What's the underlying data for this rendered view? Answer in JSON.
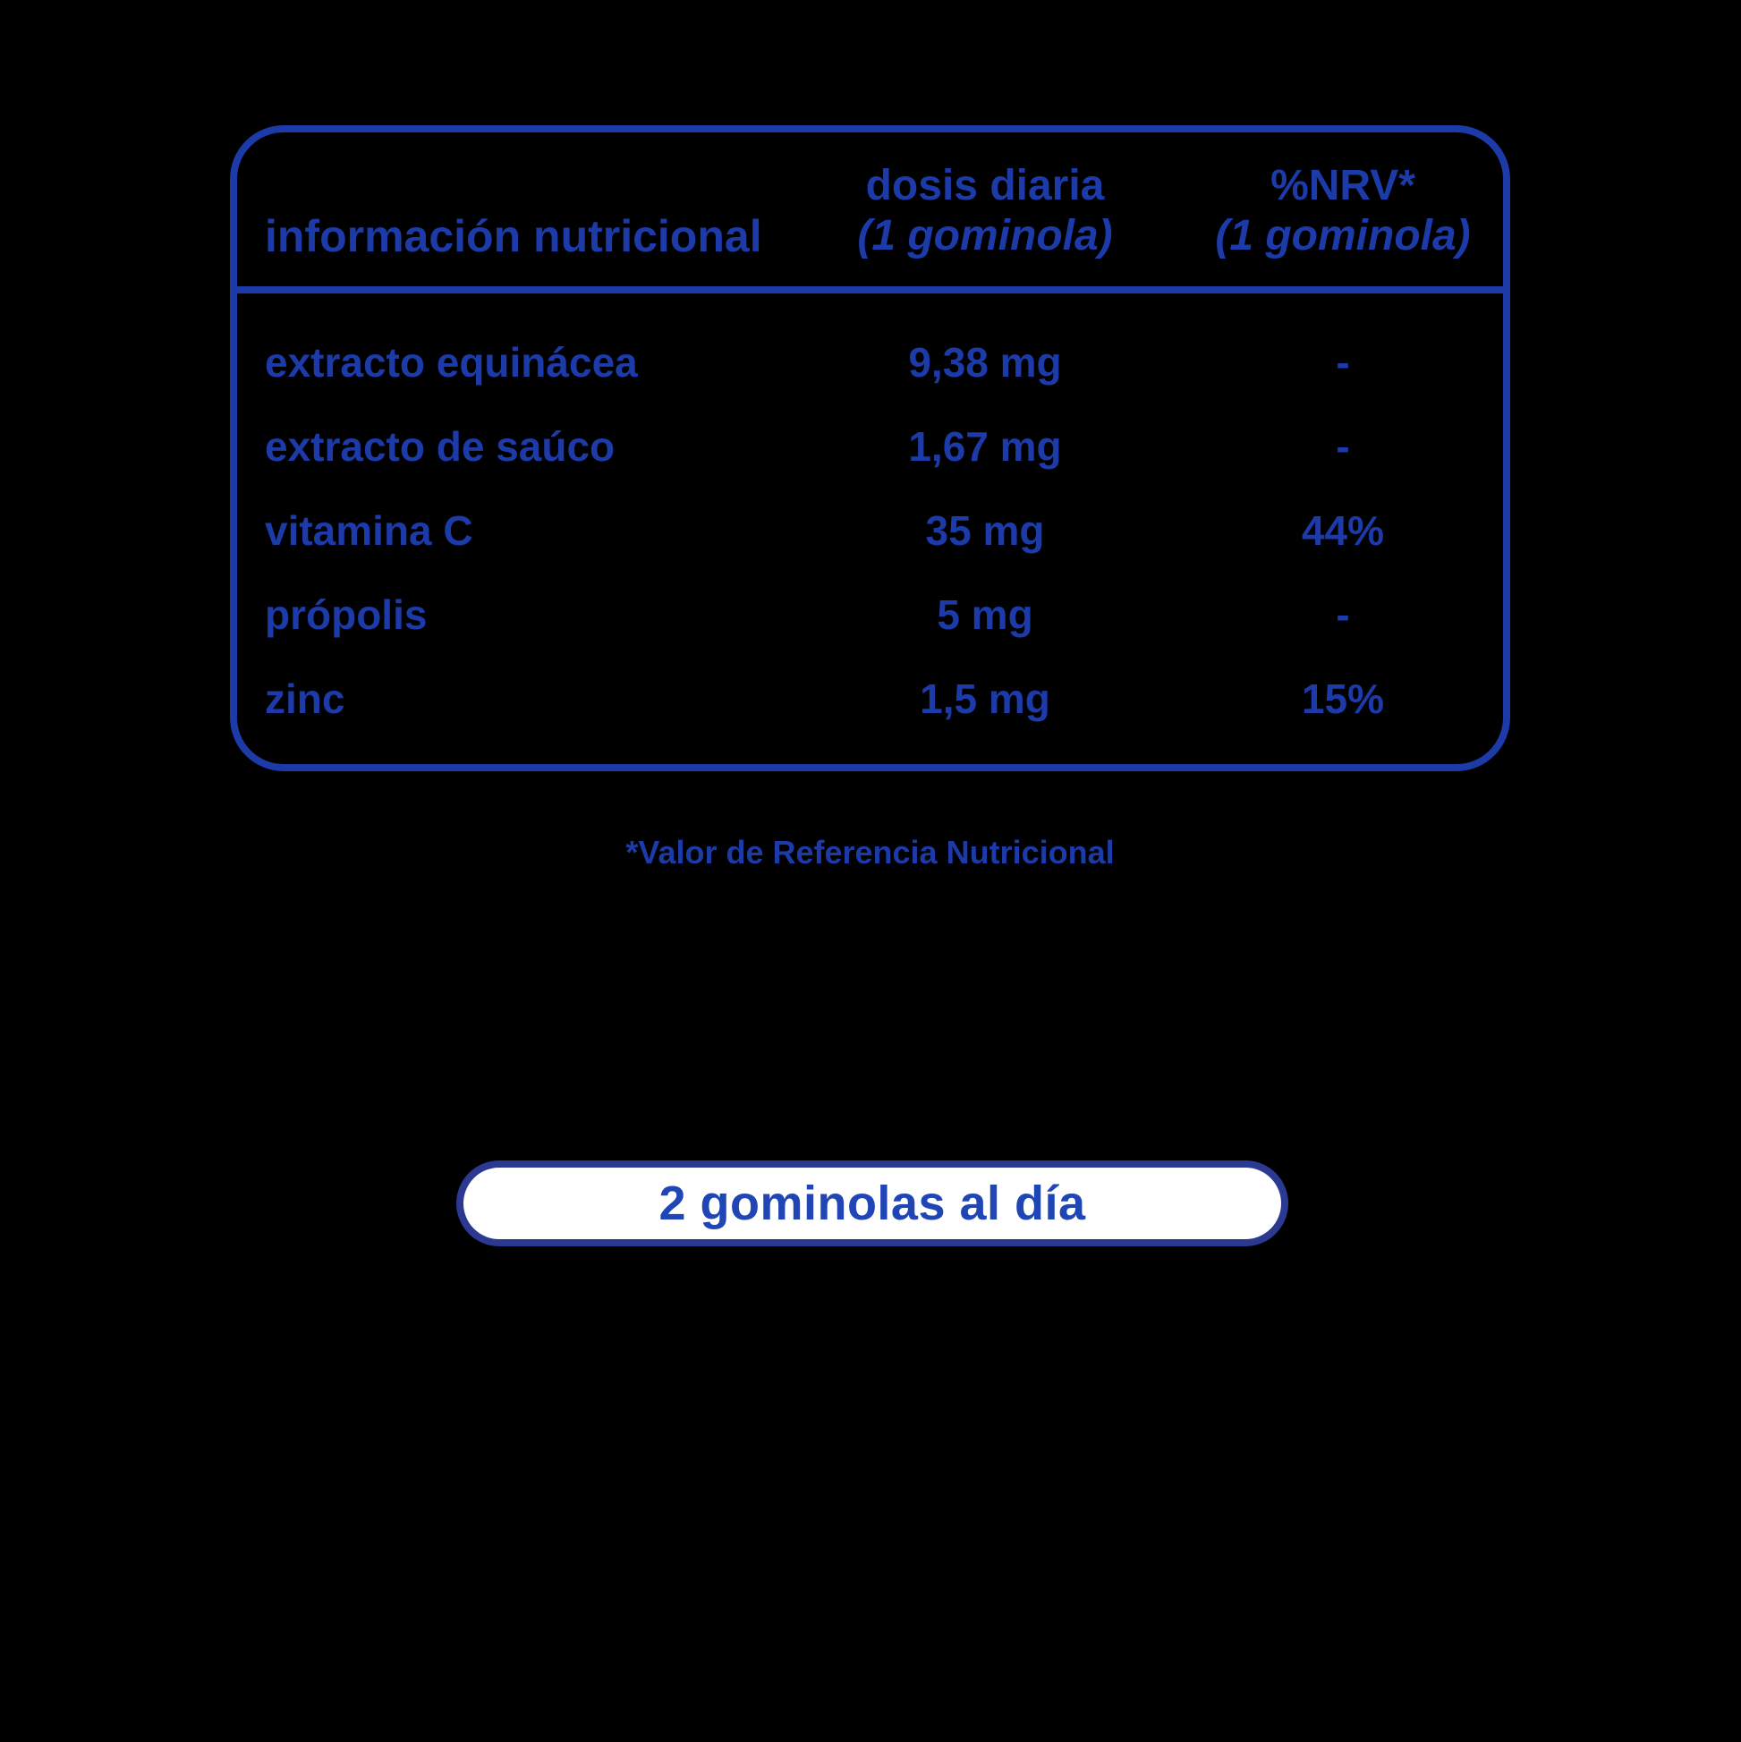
{
  "colors": {
    "accent_blue": "#1c3aa8",
    "pill_border": "#2b3a90",
    "pill_text": "#2045b5",
    "pill_background": "#ffffff",
    "background": "#000000"
  },
  "table": {
    "header": {
      "col1": "información nutricional",
      "col2_title": "dosis diaria",
      "col2_subtitle": "(1 gominola)",
      "col3_title": "%NRV*",
      "col3_subtitle": "(1 gominola)"
    },
    "rows": [
      {
        "label": "extracto equinácea",
        "dose": "9,38 mg",
        "nrv": "-"
      },
      {
        "label": "extracto de saúco",
        "dose": "1,67 mg",
        "nrv": "-"
      },
      {
        "label": "vitamina C",
        "dose": "35 mg",
        "nrv": "44%"
      },
      {
        "label": "própolis",
        "dose": "5 mg",
        "nrv": "-"
      },
      {
        "label": "zinc",
        "dose": "1,5 mg",
        "nrv": "15%"
      }
    ]
  },
  "footnote": "*Valor de Referencia Nutricional",
  "dosage_button": "2 gominolas al día"
}
